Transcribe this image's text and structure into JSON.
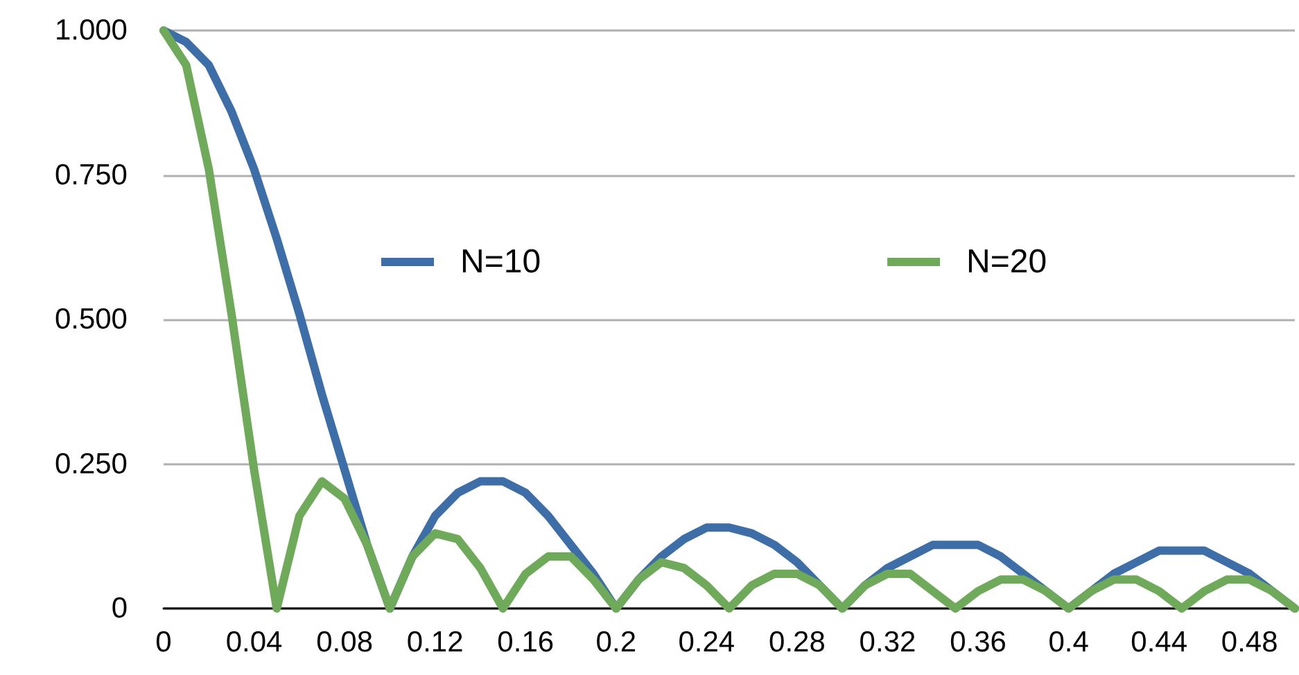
{
  "chart_data": {
    "type": "line",
    "categories": [
      "0",
      null,
      null,
      null,
      "0.04",
      null,
      null,
      null,
      "0.08",
      null,
      null,
      null,
      "0.12",
      null,
      null,
      null,
      "0.16",
      null,
      null,
      null,
      "0.2",
      null,
      null,
      null,
      "0.24",
      null,
      null,
      null,
      "0.28",
      null,
      null,
      null,
      "0.32",
      null,
      null,
      null,
      "0.36",
      null,
      null,
      null,
      "0.4",
      null,
      null,
      null,
      "0.44",
      null,
      null,
      null,
      "0.48",
      null,
      null
    ],
    "series": [
      {
        "name": "N=10",
        "color": "#3d6ea8",
        "values": [
          1,
          0.98,
          0.94,
          0.86,
          0.76,
          0.64,
          0.51,
          0.37,
          0.24,
          0.11,
          0,
          0.09,
          0.16,
          0.2,
          0.22,
          0.22,
          0.2,
          0.16,
          0.11,
          0.06,
          0,
          0.05,
          0.09,
          0.12,
          0.14,
          0.14,
          0.13,
          0.11,
          0.08,
          0.04,
          0,
          0.04,
          0.07,
          0.09,
          0.11,
          0.11,
          0.11,
          0.09,
          0.06,
          0.03,
          0,
          0.03,
          0.06,
          0.08,
          0.1,
          0.1,
          0.1,
          0.08,
          0.06,
          0.03,
          0
        ]
      },
      {
        "name": "N=20",
        "color": "#6fa95a",
        "values": [
          1,
          0.94,
          0.76,
          0.51,
          0.24,
          0,
          0.16,
          0.22,
          0.19,
          0.11,
          0,
          0.09,
          0.13,
          0.12,
          0.07,
          0,
          0.06,
          0.09,
          0.09,
          0.05,
          0,
          0.05,
          0.08,
          0.07,
          0.04,
          0,
          0.04,
          0.06,
          0.06,
          0.04,
          0,
          0.04,
          0.06,
          0.06,
          0.03,
          0,
          0.03,
          0.05,
          0.05,
          0.03,
          0,
          0.03,
          0.05,
          0.05,
          0.03,
          0,
          0.03,
          0.05,
          0.05,
          0.03,
          0
        ]
      }
    ],
    "ylim": [
      0,
      1
    ],
    "yticks": [
      {
        "value": 0,
        "label": "0"
      },
      {
        "value": 0.25,
        "label": "0.250"
      },
      {
        "value": 0.5,
        "label": "0.500"
      },
      {
        "value": 0.75,
        "label": "0.750"
      },
      {
        "value": 1,
        "label": "1.000"
      }
    ],
    "grid": "y",
    "legend": "top",
    "marker": "none",
    "line_style": "solid"
  }
}
